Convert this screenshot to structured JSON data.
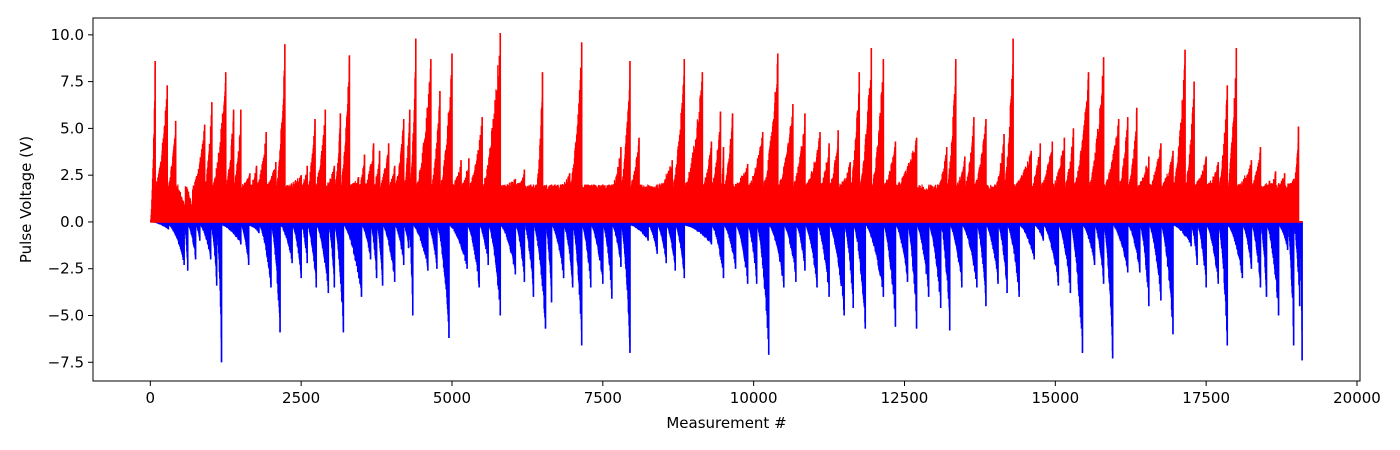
{
  "chart_data": {
    "type": "bar",
    "title": "",
    "xlabel": "Measurement #",
    "ylabel": "Pulse Voltage (V)",
    "xlim": [
      -950,
      20050
    ],
    "ylim": [
      -8.5,
      10.9
    ],
    "xticks": [
      0,
      2500,
      5000,
      7500,
      10000,
      12500,
      15000,
      17500,
      20000
    ],
    "xtick_labels": [
      "0",
      "2500",
      "5000",
      "7500",
      "10000",
      "12500",
      "15000",
      "17500",
      "20000"
    ],
    "yticks": [
      -7.5,
      -5.0,
      -2.5,
      0.0,
      2.5,
      5.0,
      7.5,
      10.0
    ],
    "ytick_labels": [
      "−7.5",
      "−5.0",
      "−2.5",
      "0.0",
      "2.5",
      "5.0",
      "7.5",
      "10.0"
    ],
    "grid": false,
    "legend": "none",
    "series": [
      {
        "color": "#ff0000",
        "sign": "positive",
        "measurement_count": 19100,
        "reset_value": 2.0,
        "peaks": [
          {
            "x": 80,
            "value": 8.6
          },
          {
            "x": 280,
            "value": 7.3
          },
          {
            "x": 420,
            "value": 5.4
          },
          {
            "x": 580,
            "value": 0.8
          },
          {
            "x": 700,
            "value": 0.7
          },
          {
            "x": 900,
            "value": 5.2
          },
          {
            "x": 1020,
            "value": 6.4
          },
          {
            "x": 1250,
            "value": 8.0
          },
          {
            "x": 1380,
            "value": 6.0
          },
          {
            "x": 1500,
            "value": 6.0
          },
          {
            "x": 1650,
            "value": 2.6
          },
          {
            "x": 1760,
            "value": 3.0
          },
          {
            "x": 1920,
            "value": 4.8
          },
          {
            "x": 2080,
            "value": 3.2
          },
          {
            "x": 2230,
            "value": 9.5
          },
          {
            "x": 2500,
            "value": 2.5
          },
          {
            "x": 2600,
            "value": 3.0
          },
          {
            "x": 2730,
            "value": 5.5
          },
          {
            "x": 2900,
            "value": 6.0
          },
          {
            "x": 3050,
            "value": 3.0
          },
          {
            "x": 3150,
            "value": 5.8
          },
          {
            "x": 3300,
            "value": 8.9
          },
          {
            "x": 3450,
            "value": 2.4
          },
          {
            "x": 3550,
            "value": 3.6
          },
          {
            "x": 3700,
            "value": 4.2
          },
          {
            "x": 3800,
            "value": 3.8
          },
          {
            "x": 3950,
            "value": 4.2
          },
          {
            "x": 4050,
            "value": 3.0
          },
          {
            "x": 4200,
            "value": 5.5
          },
          {
            "x": 4300,
            "value": 6.0
          },
          {
            "x": 4400,
            "value": 9.8
          },
          {
            "x": 4650,
            "value": 8.7
          },
          {
            "x": 4800,
            "value": 7.0
          },
          {
            "x": 5000,
            "value": 9.0
          },
          {
            "x": 5150,
            "value": 3.3
          },
          {
            "x": 5280,
            "value": 3.4
          },
          {
            "x": 5500,
            "value": 5.6
          },
          {
            "x": 5800,
            "value": 10.1
          },
          {
            "x": 6050,
            "value": 2.3
          },
          {
            "x": 6200,
            "value": 2.8
          },
          {
            "x": 6400,
            "value": 2.0
          },
          {
            "x": 6500,
            "value": 8.0
          },
          {
            "x": 6650,
            "value": 2.0
          },
          {
            "x": 6800,
            "value": 2.0
          },
          {
            "x": 6950,
            "value": 2.6
          },
          {
            "x": 7150,
            "value": 9.6
          },
          {
            "x": 7350,
            "value": 2.0
          },
          {
            "x": 7500,
            "value": 2.0
          },
          {
            "x": 7650,
            "value": 2.0
          },
          {
            "x": 7800,
            "value": 4.0
          },
          {
            "x": 7950,
            "value": 8.6
          },
          {
            "x": 8100,
            "value": 4.5
          },
          {
            "x": 8400,
            "value": 2.0
          },
          {
            "x": 8650,
            "value": 3.3
          },
          {
            "x": 8850,
            "value": 8.7
          },
          {
            "x": 9150,
            "value": 8.0
          },
          {
            "x": 9300,
            "value": 4.3
          },
          {
            "x": 9450,
            "value": 5.9
          },
          {
            "x": 9500,
            "value": 4.0
          },
          {
            "x": 9650,
            "value": 5.8
          },
          {
            "x": 9900,
            "value": 3.1
          },
          {
            "x": 10150,
            "value": 4.8
          },
          {
            "x": 10400,
            "value": 9.0
          },
          {
            "x": 10650,
            "value": 6.3
          },
          {
            "x": 10850,
            "value": 5.8
          },
          {
            "x": 11100,
            "value": 4.8
          },
          {
            "x": 11250,
            "value": 4.2
          },
          {
            "x": 11400,
            "value": 4.9
          },
          {
            "x": 11600,
            "value": 3.2
          },
          {
            "x": 11750,
            "value": 8.0
          },
          {
            "x": 11950,
            "value": 9.3
          },
          {
            "x": 12150,
            "value": 8.7
          },
          {
            "x": 12350,
            "value": 4.3
          },
          {
            "x": 12700,
            "value": 4.5
          },
          {
            "x": 12900,
            "value": 1.8
          },
          {
            "x": 13050,
            "value": 2.0
          },
          {
            "x": 13200,
            "value": 4.0
          },
          {
            "x": 13350,
            "value": 8.7
          },
          {
            "x": 13500,
            "value": 3.5
          },
          {
            "x": 13650,
            "value": 5.6
          },
          {
            "x": 13850,
            "value": 5.5
          },
          {
            "x": 14000,
            "value": 2.0
          },
          {
            "x": 14150,
            "value": 4.7
          },
          {
            "x": 14300,
            "value": 9.8
          },
          {
            "x": 14600,
            "value": 3.8
          },
          {
            "x": 14750,
            "value": 4.2
          },
          {
            "x": 14950,
            "value": 4.3
          },
          {
            "x": 15150,
            "value": 4.5
          },
          {
            "x": 15300,
            "value": 5.0
          },
          {
            "x": 15550,
            "value": 8.0
          },
          {
            "x": 15800,
            "value": 8.8
          },
          {
            "x": 16050,
            "value": 5.5
          },
          {
            "x": 16200,
            "value": 5.6
          },
          {
            "x": 16350,
            "value": 6.1
          },
          {
            "x": 16550,
            "value": 3.5
          },
          {
            "x": 16750,
            "value": 4.2
          },
          {
            "x": 16950,
            "value": 3.8
          },
          {
            "x": 17150,
            "value": 9.2
          },
          {
            "x": 17300,
            "value": 7.5
          },
          {
            "x": 17500,
            "value": 3.5
          },
          {
            "x": 17700,
            "value": 3.2
          },
          {
            "x": 17850,
            "value": 7.3
          },
          {
            "x": 18000,
            "value": 9.3
          },
          {
            "x": 18250,
            "value": 3.3
          },
          {
            "x": 18400,
            "value": 4.0
          },
          {
            "x": 18550,
            "value": 2.2
          },
          {
            "x": 18650,
            "value": 2.7
          },
          {
            "x": 18800,
            "value": 2.6
          },
          {
            "x": 18950,
            "value": 2.3
          },
          {
            "x": 19030,
            "value": 5.1
          }
        ]
      },
      {
        "color": "#0000ff",
        "sign": "negative",
        "measurement_count": 19100,
        "reset_value": -0.2,
        "peaks": [
          {
            "x": 300,
            "value": -0.4
          },
          {
            "x": 560,
            "value": -2.3
          },
          {
            "x": 620,
            "value": -2.6
          },
          {
            "x": 750,
            "value": -2.0
          },
          {
            "x": 820,
            "value": -1.0
          },
          {
            "x": 1000,
            "value": -2.0
          },
          {
            "x": 1100,
            "value": -3.4
          },
          {
            "x": 1180,
            "value": -7.5
          },
          {
            "x": 1500,
            "value": -1.2
          },
          {
            "x": 1630,
            "value": -2.3
          },
          {
            "x": 1800,
            "value": -0.6
          },
          {
            "x": 2000,
            "value": -3.5
          },
          {
            "x": 2150,
            "value": -5.9
          },
          {
            "x": 2350,
            "value": -2.2
          },
          {
            "x": 2500,
            "value": -3.0
          },
          {
            "x": 2600,
            "value": -2.2
          },
          {
            "x": 2750,
            "value": -3.5
          },
          {
            "x": 2950,
            "value": -3.8
          },
          {
            "x": 3050,
            "value": -3.5
          },
          {
            "x": 3200,
            "value": -5.9
          },
          {
            "x": 3500,
            "value": -4.0
          },
          {
            "x": 3650,
            "value": -2.0
          },
          {
            "x": 3750,
            "value": -3.0
          },
          {
            "x": 3850,
            "value": -3.4
          },
          {
            "x": 4050,
            "value": -3.2
          },
          {
            "x": 4200,
            "value": -2.3
          },
          {
            "x": 4280,
            "value": -1.4
          },
          {
            "x": 4350,
            "value": -5.0
          },
          {
            "x": 4600,
            "value": -2.6
          },
          {
            "x": 4750,
            "value": -2.5
          },
          {
            "x": 4950,
            "value": -6.2
          },
          {
            "x": 5250,
            "value": -2.5
          },
          {
            "x": 5450,
            "value": -3.5
          },
          {
            "x": 5600,
            "value": -2.3
          },
          {
            "x": 5800,
            "value": -5.0
          },
          {
            "x": 6050,
            "value": -2.8
          },
          {
            "x": 6200,
            "value": -3.2
          },
          {
            "x": 6350,
            "value": -4.0
          },
          {
            "x": 6550,
            "value": -5.7
          },
          {
            "x": 6650,
            "value": -4.3
          },
          {
            "x": 6850,
            "value": -3.0
          },
          {
            "x": 7000,
            "value": -3.5
          },
          {
            "x": 7150,
            "value": -6.6
          },
          {
            "x": 7300,
            "value": -3.5
          },
          {
            "x": 7500,
            "value": -3.3
          },
          {
            "x": 7650,
            "value": -4.1
          },
          {
            "x": 7800,
            "value": -2.4
          },
          {
            "x": 7950,
            "value": -7.0
          },
          {
            "x": 8250,
            "value": -1.0
          },
          {
            "x": 8400,
            "value": -1.7
          },
          {
            "x": 8550,
            "value": -2.2
          },
          {
            "x": 8700,
            "value": -2.6
          },
          {
            "x": 8850,
            "value": -3.0
          },
          {
            "x": 9300,
            "value": -1.2
          },
          {
            "x": 9500,
            "value": -3.0
          },
          {
            "x": 9700,
            "value": -2.5
          },
          {
            "x": 9900,
            "value": -3.3
          },
          {
            "x": 10050,
            "value": -3.3
          },
          {
            "x": 10250,
            "value": -7.1
          },
          {
            "x": 10500,
            "value": -3.5
          },
          {
            "x": 10700,
            "value": -3.2
          },
          {
            "x": 10850,
            "value": -2.6
          },
          {
            "x": 11050,
            "value": -3.5
          },
          {
            "x": 11250,
            "value": -4.0
          },
          {
            "x": 11500,
            "value": -5.0
          },
          {
            "x": 11650,
            "value": -4.6
          },
          {
            "x": 11850,
            "value": -5.7
          },
          {
            "x": 12150,
            "value": -4.0
          },
          {
            "x": 12350,
            "value": -5.6
          },
          {
            "x": 12550,
            "value": -3.2
          },
          {
            "x": 12700,
            "value": -5.7
          },
          {
            "x": 12900,
            "value": -4.0
          },
          {
            "x": 13100,
            "value": -4.6
          },
          {
            "x": 13250,
            "value": -5.8
          },
          {
            "x": 13450,
            "value": -3.5
          },
          {
            "x": 13700,
            "value": -3.5
          },
          {
            "x": 13850,
            "value": -4.5
          },
          {
            "x": 14050,
            "value": -3.3
          },
          {
            "x": 14200,
            "value": -3.8
          },
          {
            "x": 14400,
            "value": -4.0
          },
          {
            "x": 14650,
            "value": -2.0
          },
          {
            "x": 14800,
            "value": -1.0
          },
          {
            "x": 15050,
            "value": -3.4
          },
          {
            "x": 15250,
            "value": -3.8
          },
          {
            "x": 15450,
            "value": -7.0
          },
          {
            "x": 15650,
            "value": -2.3
          },
          {
            "x": 15800,
            "value": -3.3
          },
          {
            "x": 15950,
            "value": -7.3
          },
          {
            "x": 16200,
            "value": -2.7
          },
          {
            "x": 16400,
            "value": -2.7
          },
          {
            "x": 16550,
            "value": -4.5
          },
          {
            "x": 16750,
            "value": -4.2
          },
          {
            "x": 16950,
            "value": -6.0
          },
          {
            "x": 17250,
            "value": -1.3
          },
          {
            "x": 17350,
            "value": -2.3
          },
          {
            "x": 17500,
            "value": -3.5
          },
          {
            "x": 17700,
            "value": -3.3
          },
          {
            "x": 17850,
            "value": -6.6
          },
          {
            "x": 18100,
            "value": -3.0
          },
          {
            "x": 18250,
            "value": -2.5
          },
          {
            "x": 18400,
            "value": -3.5
          },
          {
            "x": 18500,
            "value": -4.0
          },
          {
            "x": 18700,
            "value": -5.0
          },
          {
            "x": 18850,
            "value": -1.5
          },
          {
            "x": 18950,
            "value": -6.6
          },
          {
            "x": 19050,
            "value": -4.5
          },
          {
            "x": 19090,
            "value": -7.4
          }
        ]
      }
    ]
  }
}
